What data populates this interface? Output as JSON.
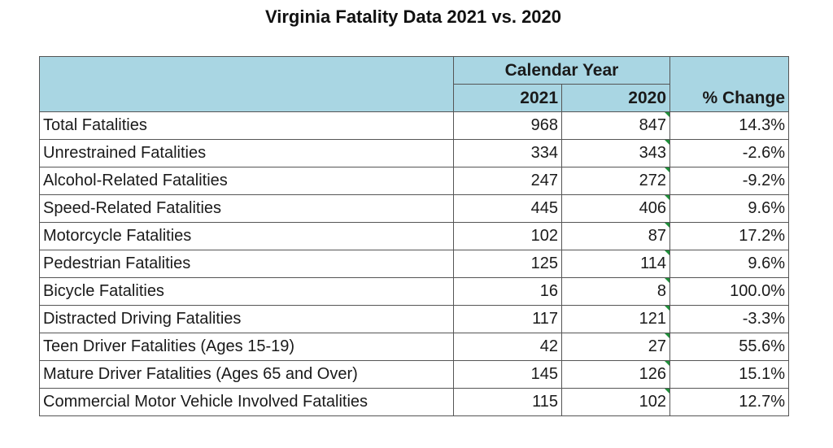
{
  "title": "Virginia Fatality Data 2021 vs. 2020",
  "header": {
    "group_label": "Calendar Year",
    "year_1": "2021",
    "year_2": "2020",
    "change_label": "% Change"
  },
  "rows": [
    {
      "label": "Total Fatalities",
      "y2021": "968",
      "y2020": "847",
      "change": "14.3%"
    },
    {
      "label": "Unrestrained Fatalities",
      "y2021": "334",
      "y2020": "343",
      "change": "-2.6%"
    },
    {
      "label": "Alcohol-Related Fatalities",
      "y2021": "247",
      "y2020": "272",
      "change": "-9.2%"
    },
    {
      "label": "Speed-Related Fatalities",
      "y2021": "445",
      "y2020": "406",
      "change": "9.6%"
    },
    {
      "label": "Motorcycle Fatalities",
      "y2021": "102",
      "y2020": "87",
      "change": "17.2%"
    },
    {
      "label": "Pedestrian Fatalities",
      "y2021": "125",
      "y2020": "114",
      "change": "9.6%"
    },
    {
      "label": "Bicycle Fatalities",
      "y2021": "16",
      "y2020": "8",
      "change": "100.0%"
    },
    {
      "label": "Distracted Driving Fatalities",
      "y2021": "117",
      "y2020": "121",
      "change": "-3.3%"
    },
    {
      "label": "Teen Driver Fatalities (Ages 15-19)",
      "y2021": "42",
      "y2020": "27",
      "change": "55.6%"
    },
    {
      "label": "Mature Driver Fatalities (Ages 65 and Over)",
      "y2021": "145",
      "y2020": "126",
      "change": "15.1%"
    },
    {
      "label": "Commercial Motor Vehicle Involved Fatalities",
      "y2021": "115",
      "y2020": "102",
      "change": "12.7%"
    }
  ],
  "colors": {
    "header_fill": "#a9d6e3",
    "comment_marker": "#1f8f3a"
  }
}
